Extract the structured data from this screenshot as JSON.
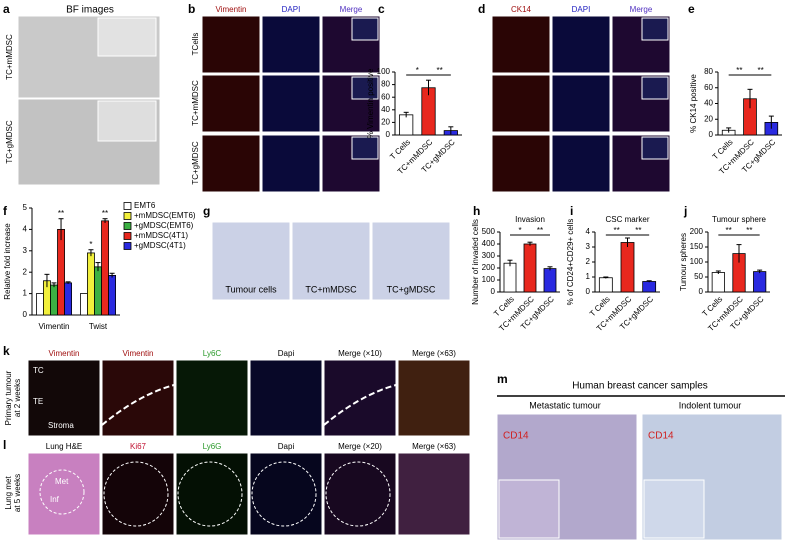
{
  "panels": [
    "a",
    "b",
    "c",
    "d",
    "e",
    "f",
    "g",
    "h",
    "i",
    "j",
    "k",
    "l",
    "m"
  ],
  "a": {
    "title": "BF images",
    "rows": [
      "TC+mMDSC",
      "TC+gMDSC"
    ]
  },
  "b": {
    "columns": [
      "Vimentin",
      "DAPI",
      "Merge"
    ],
    "rows": [
      "TCells",
      "TC+mMDSC",
      "TC+gMDSC"
    ]
  },
  "d": {
    "columns": [
      "CK14",
      "DAPI",
      "Merge"
    ]
  },
  "g": {
    "labels": [
      "Tumour cells",
      "TC+mMDSC",
      "TC+gMDSC"
    ]
  },
  "k": {
    "columns": [
      "Vimentin",
      "Vimentin",
      "Ly6C",
      "Dapi",
      "Merge (×10)",
      "Merge (×63)"
    ],
    "regions": [
      "TC",
      "TE",
      "Stroma"
    ],
    "row_label": [
      "Primary tumour",
      "at 2 weeks"
    ]
  },
  "l": {
    "columns": [
      "Lung H&E",
      "Ki67",
      "Ly6G",
      "Dapi",
      "Merge (×20)",
      "Merge (×63)"
    ],
    "regions": [
      "Met",
      "Inf"
    ],
    "row_label": [
      "Lung met",
      "at 5 weeks"
    ]
  },
  "m": {
    "title": "Human breast cancer samples",
    "columns": [
      "Metastatic tumour",
      "Indolent tumour"
    ],
    "stains": [
      "CD14",
      "CD14"
    ]
  },
  "chart_data": [
    {
      "type": "bar",
      "y_label": "% Vimentin positive",
      "categories": [
        "T Cells",
        "TC+mMDSC",
        "TC+gMDSC"
      ],
      "values": [
        32,
        75,
        7
      ],
      "errors": [
        4,
        12,
        6
      ],
      "colors": [
        "#ffffff",
        "#e8281e",
        "#2a2ae0"
      ],
      "ylim": [
        0,
        100
      ],
      "yticks": [
        0,
        20,
        40,
        60,
        80,
        100
      ],
      "annotations": [
        "*",
        "**"
      ]
    },
    {
      "type": "bar",
      "y_label": "% CK14 positive",
      "categories": [
        "T Cells",
        "TC+mMDSC",
        "TC+gMDSC"
      ],
      "values": [
        6,
        46,
        16
      ],
      "errors": [
        3,
        12,
        8
      ],
      "colors": [
        "#ffffff",
        "#e8281e",
        "#2a2ae0"
      ],
      "ylim": [
        0,
        80
      ],
      "yticks": [
        0,
        20,
        40,
        60,
        80
      ],
      "annotations": [
        "**",
        "**"
      ]
    },
    {
      "type": "grouped_bar",
      "y_label": "Relative fold increase",
      "categories": [
        "Vimentin",
        "Twist"
      ],
      "series": [
        {
          "name": "EMT6",
          "color": "#ffffff",
          "values": [
            1,
            1
          ]
        },
        {
          "name": "+mMDSC(EMT6)",
          "color": "#f2f03c",
          "values": [
            1.6,
            2.9
          ],
          "errors": [
            0.3,
            0.15
          ]
        },
        {
          "name": "+gMDSC(EMT6)",
          "color": "#3cb043",
          "values": [
            1.4,
            2.25
          ],
          "errors": [
            0.1,
            0.2
          ]
        },
        {
          "name": "+mMDSC(4T1)",
          "color": "#e8281e",
          "values": [
            4.0,
            4.4
          ],
          "errors": [
            0.5,
            0.1
          ]
        },
        {
          "name": "+gMDSC(4T1)",
          "color": "#2a2ae0",
          "values": [
            1.5,
            1.85
          ],
          "errors": [
            0.05,
            0.1
          ]
        }
      ],
      "ylim": [
        0,
        5
      ],
      "yticks": [
        0,
        1,
        2,
        3,
        4,
        5
      ],
      "annotations": [
        "**",
        "*",
        "**"
      ]
    },
    {
      "type": "bar",
      "title": "Invasion",
      "y_label": "Number of invaded cells",
      "categories": [
        "T Cells",
        "TC+mMDSC",
        "TC+gMDSC"
      ],
      "values": [
        240,
        400,
        195
      ],
      "errors": [
        25,
        15,
        15
      ],
      "colors": [
        "#ffffff",
        "#e8281e",
        "#2a2ae0"
      ],
      "ylim": [
        0,
        500
      ],
      "yticks": [
        0,
        100,
        200,
        300,
        400,
        500
      ],
      "annotations": [
        "*",
        "**"
      ]
    },
    {
      "type": "bar",
      "title": "CSC marker",
      "y_label": "% of CD24+CD29+ cells",
      "categories": [
        "T Cells",
        "TC+mMDSC",
        "TC+gMDSC"
      ],
      "values": [
        0.95,
        3.3,
        0.7
      ],
      "errors": [
        0.05,
        0.3,
        0.05
      ],
      "colors": [
        "#ffffff",
        "#e8281e",
        "#2a2ae0"
      ],
      "ylim": [
        0,
        4
      ],
      "yticks": [
        0,
        1,
        2,
        3,
        4
      ],
      "annotations": [
        "**",
        "**"
      ]
    },
    {
      "type": "bar",
      "title": "Tumour sphere",
      "y_label": "Tumour spheres",
      "categories": [
        "T Cells",
        "TC+mMDSC",
        "TC+gMDSC"
      ],
      "values": [
        65,
        128,
        68
      ],
      "errors": [
        5,
        30,
        5
      ],
      "colors": [
        "#ffffff",
        "#e8281e",
        "#2a2ae0"
      ],
      "ylim": [
        0,
        200
      ],
      "yticks": [
        0,
        50,
        100,
        150,
        200
      ],
      "annotations": [
        "**",
        "**"
      ]
    }
  ]
}
